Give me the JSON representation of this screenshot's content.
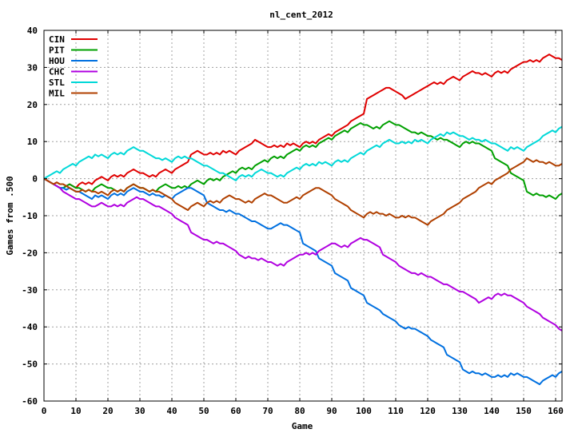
{
  "chart_data": {
    "type": "line",
    "title": "nl_cent_2012",
    "xlabel": "Game",
    "ylabel": "Games from .500",
    "xlim": [
      0,
      162
    ],
    "ylim": [
      -60,
      40
    ],
    "xticks": [
      0,
      10,
      20,
      30,
      40,
      50,
      60,
      70,
      80,
      90,
      100,
      110,
      120,
      130,
      140,
      150,
      160
    ],
    "yticks": [
      -60,
      -50,
      -40,
      -30,
      -20,
      -10,
      0,
      10,
      20,
      30,
      40
    ],
    "grid": true,
    "legend_position": "top-left",
    "series": [
      {
        "name": "CIN",
        "color": "#e00000",
        "points": [
          [
            0,
            0
          ],
          [
            5,
            -1
          ],
          [
            10,
            -2
          ],
          [
            15,
            -1
          ],
          [
            20,
            0
          ],
          [
            25,
            1
          ],
          [
            30,
            2
          ],
          [
            35,
            1
          ],
          [
            40,
            2
          ],
          [
            45,
            6
          ],
          [
            50,
            7
          ],
          [
            55,
            7
          ],
          [
            60,
            7
          ],
          [
            65,
            11
          ],
          [
            70,
            8
          ],
          [
            75,
            9
          ],
          [
            80,
            9
          ],
          [
            85,
            10
          ],
          [
            90,
            12
          ],
          [
            95,
            15
          ],
          [
            100,
            21
          ],
          [
            107,
            25
          ],
          [
            112,
            21
          ],
          [
            120,
            25
          ],
          [
            125,
            26
          ],
          [
            130,
            27
          ],
          [
            135,
            29
          ],
          [
            140,
            28
          ],
          [
            145,
            29
          ],
          [
            150,
            32
          ],
          [
            155,
            32
          ],
          [
            160,
            33
          ],
          [
            162,
            32
          ]
        ]
      },
      {
        "name": "PIT",
        "color": "#00a000",
        "points": [
          [
            0,
            0
          ],
          [
            5,
            -3
          ],
          [
            10,
            -2
          ],
          [
            15,
            -3
          ],
          [
            20,
            -2
          ],
          [
            25,
            -3
          ],
          [
            30,
            -2
          ],
          [
            35,
            -3
          ],
          [
            40,
            -2
          ],
          [
            45,
            -2
          ],
          [
            50,
            -1
          ],
          [
            55,
            0
          ],
          [
            60,
            2
          ],
          [
            65,
            3
          ],
          [
            70,
            5
          ],
          [
            75,
            6
          ],
          [
            80,
            8
          ],
          [
            85,
            9
          ],
          [
            90,
            11
          ],
          [
            95,
            13
          ],
          [
            100,
            15
          ],
          [
            105,
            14
          ],
          [
            110,
            15
          ],
          [
            115,
            13
          ],
          [
            120,
            12
          ],
          [
            125,
            11
          ],
          [
            130,
            9
          ],
          [
            135,
            10
          ],
          [
            140,
            6
          ],
          [
            145,
            2
          ],
          [
            150,
            -3
          ],
          [
            155,
            -4
          ],
          [
            160,
            -5
          ],
          [
            162,
            -4
          ]
        ]
      },
      {
        "name": "HOU",
        "color": "#0070e0",
        "points": [
          [
            0,
            0
          ],
          [
            5,
            -2
          ],
          [
            10,
            -3
          ],
          [
            15,
            -5
          ],
          [
            20,
            -5
          ],
          [
            25,
            -4
          ],
          [
            30,
            -3
          ],
          [
            35,
            -4
          ],
          [
            40,
            -5
          ],
          [
            45,
            -2
          ],
          [
            50,
            -6
          ],
          [
            55,
            -9
          ],
          [
            60,
            -9
          ],
          [
            65,
            -11
          ],
          [
            70,
            -14
          ],
          [
            75,
            -12
          ],
          [
            80,
            -17
          ],
          [
            85,
            -21
          ],
          [
            90,
            -25
          ],
          [
            95,
            -29
          ],
          [
            100,
            -33
          ],
          [
            105,
            -36
          ],
          [
            110,
            -39
          ],
          [
            115,
            -40
          ],
          [
            120,
            -43
          ],
          [
            125,
            -47
          ],
          [
            130,
            -51
          ],
          [
            135,
            -52
          ],
          [
            140,
            -53
          ],
          [
            145,
            -53
          ],
          [
            150,
            -53
          ],
          [
            155,
            -55
          ],
          [
            160,
            -53
          ],
          [
            162,
            -52
          ]
        ]
      },
      {
        "name": "CHC",
        "color": "#b000e0",
        "points": [
          [
            0,
            0
          ],
          [
            5,
            -3
          ],
          [
            10,
            -5
          ],
          [
            15,
            -8
          ],
          [
            20,
            -7
          ],
          [
            25,
            -7
          ],
          [
            30,
            -5
          ],
          [
            35,
            -7
          ],
          [
            40,
            -10
          ],
          [
            45,
            -14
          ],
          [
            50,
            -16
          ],
          [
            55,
            -17
          ],
          [
            60,
            -20
          ],
          [
            65,
            -21
          ],
          [
            70,
            -22
          ],
          [
            75,
            -23
          ],
          [
            80,
            -20
          ],
          [
            85,
            -20
          ],
          [
            90,
            -17
          ],
          [
            95,
            -18
          ],
          [
            100,
            -16
          ],
          [
            105,
            -20
          ],
          [
            110,
            -23
          ],
          [
            115,
            -25
          ],
          [
            120,
            -26
          ],
          [
            125,
            -28
          ],
          [
            130,
            -30
          ],
          [
            135,
            -34
          ],
          [
            140,
            -32
          ],
          [
            145,
            -31
          ],
          [
            150,
            -34
          ],
          [
            155,
            -37
          ],
          [
            160,
            -40
          ],
          [
            162,
            -41
          ]
        ]
      },
      {
        "name": "STL",
        "color": "#00d8d8",
        "points": [
          [
            0,
            0
          ],
          [
            5,
            2
          ],
          [
            10,
            4
          ],
          [
            15,
            6
          ],
          [
            20,
            6
          ],
          [
            25,
            7
          ],
          [
            30,
            8
          ],
          [
            35,
            6
          ],
          [
            40,
            5
          ],
          [
            45,
            6
          ],
          [
            50,
            4
          ],
          [
            55,
            2
          ],
          [
            60,
            0
          ],
          [
            65,
            1
          ],
          [
            70,
            2
          ],
          [
            75,
            1
          ],
          [
            80,
            3
          ],
          [
            85,
            4
          ],
          [
            90,
            4
          ],
          [
            95,
            5
          ],
          [
            100,
            7
          ],
          [
            105,
            9
          ],
          [
            110,
            10
          ],
          [
            115,
            10
          ],
          [
            120,
            10
          ],
          [
            125,
            12
          ],
          [
            130,
            12
          ],
          [
            135,
            11
          ],
          [
            140,
            10
          ],
          [
            145,
            8
          ],
          [
            150,
            8
          ],
          [
            155,
            11
          ],
          [
            160,
            13
          ],
          [
            162,
            14
          ]
        ]
      },
      {
        "name": "MIL",
        "color": "#b04000",
        "points": [
          [
            0,
            0
          ],
          [
            5,
            -1
          ],
          [
            10,
            -3
          ],
          [
            15,
            -3
          ],
          [
            20,
            -4
          ],
          [
            25,
            -3
          ],
          [
            30,
            -2
          ],
          [
            35,
            -3
          ],
          [
            40,
            -6
          ],
          [
            45,
            -8
          ],
          [
            50,
            -7
          ],
          [
            55,
            -6
          ],
          [
            60,
            -5
          ],
          [
            65,
            -6
          ],
          [
            70,
            -4
          ],
          [
            75,
            -7
          ],
          [
            80,
            -5
          ],
          [
            85,
            -2
          ],
          [
            90,
            -5
          ],
          [
            95,
            -8
          ],
          [
            100,
            -10
          ],
          [
            105,
            -9
          ],
          [
            110,
            -10
          ],
          [
            115,
            -10
          ],
          [
            120,
            -12
          ],
          [
            125,
            -9
          ],
          [
            130,
            -6
          ],
          [
            135,
            -3
          ],
          [
            140,
            -1
          ],
          [
            145,
            2
          ],
          [
            150,
            6
          ],
          [
            155,
            5
          ],
          [
            160,
            4
          ],
          [
            162,
            4
          ]
        ]
      }
    ]
  }
}
